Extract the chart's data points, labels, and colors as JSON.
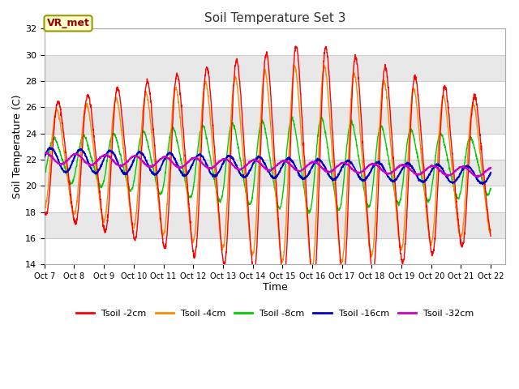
{
  "title": "Soil Temperature Set 3",
  "xlabel": "Time",
  "ylabel": "Soil Temperature (C)",
  "ylim": [
    14,
    32
  ],
  "xlim_start": 0,
  "xlim_end": 15.5,
  "annotation_text": "VR_met",
  "annotation_bg": "#ffffcc",
  "annotation_border": "#999900",
  "annotation_text_color": "#990000",
  "x_tick_labels": [
    "Oct 7",
    "Oct 8",
    "Oct 9",
    "Oct 10",
    "Oct 11",
    "Oct 12",
    "Oct 13",
    "Oct 14",
    "Oct 15",
    "Oct 16",
    "Oct 17",
    "Oct 18",
    "Oct 19",
    "Oct 20",
    "Oct 21",
    "Oct 22"
  ],
  "x_tick_positions": [
    0,
    1,
    2,
    3,
    4,
    5,
    6,
    7,
    8,
    9,
    10,
    11,
    12,
    13,
    14,
    15
  ],
  "series_colors": [
    "#ff0000",
    "#ff8800",
    "#00cc00",
    "#0000cc",
    "#cc00cc"
  ],
  "series_labels": [
    "Tsoil -2cm",
    "Tsoil -4cm",
    "Tsoil -8cm",
    "Tsoil -16cm",
    "Tsoil -32cm"
  ],
  "band_colors": [
    "#ffffff",
    "#e8e8e8"
  ],
  "grid_color": "#cccccc",
  "fig_bg": "#ffffff",
  "plot_bg": "#ffffff"
}
